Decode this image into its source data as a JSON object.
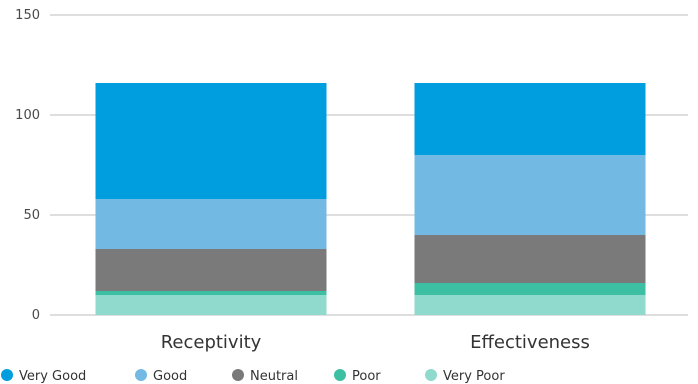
{
  "chart_data": {
    "type": "bar",
    "stacked": true,
    "categories": [
      "Receptivity",
      "Effectiveness"
    ],
    "series": [
      {
        "name": "Very Poor",
        "color": "#8fdacc",
        "values": [
          10,
          10
        ]
      },
      {
        "name": "Poor",
        "color": "#3dbfa3",
        "values": [
          2,
          6
        ]
      },
      {
        "name": "Neutral",
        "color": "#7a7a7a",
        "values": [
          21,
          24
        ]
      },
      {
        "name": "Good",
        "color": "#72b9e3",
        "values": [
          25,
          40
        ]
      },
      {
        "name": "Very Good",
        "color": "#009ddf",
        "values": [
          58,
          36
        ]
      }
    ],
    "legend_order": [
      "Very Good",
      "Good",
      "Neutral",
      "Poor",
      "Very Poor"
    ],
    "ylim": [
      0,
      150
    ],
    "yticks": [
      0,
      50,
      100,
      150
    ],
    "ytick_labels": [
      "0",
      "50",
      "100",
      "150"
    ],
    "grid": true,
    "legend": "bottom-left"
  }
}
